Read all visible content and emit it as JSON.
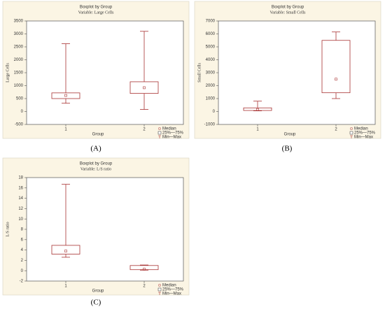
{
  "chart_data": [
    {
      "type": "box",
      "title": "Boxplot by Group",
      "subtitle": "Variable: Large Cells",
      "x_label": "Group",
      "y_label": "Large Cells",
      "panel_label": "(A)",
      "categories": [
        "1",
        "2"
      ],
      "min": [
        320,
        80
      ],
      "q1": [
        500,
        700
      ],
      "median": [
        620,
        920
      ],
      "q3": [
        720,
        1150
      ],
      "max": [
        2620,
        3100
      ],
      "color": "#a83232",
      "ylim": [
        -500,
        3500
      ],
      "yticks": [
        -500,
        0,
        500,
        1000,
        1500,
        2000,
        2500,
        3000,
        3500
      ],
      "grid": false,
      "legend": [
        "Median",
        "25%—75%",
        "Min—Max"
      ]
    },
    {
      "type": "box",
      "title": "Boxplot by Group",
      "subtitle": "Variable: Small Cells",
      "x_label": "Group",
      "y_label": "Small Cells",
      "panel_label": "(B)",
      "categories": [
        "1",
        "2"
      ],
      "min": [
        50,
        1000
      ],
      "q1": [
        80,
        1450
      ],
      "median": [
        150,
        2500
      ],
      "q3": [
        280,
        5500
      ],
      "max": [
        800,
        6150
      ],
      "color": "#a83232",
      "ylim": [
        -1000,
        7000
      ],
      "yticks": [
        -1000,
        0,
        1000,
        2000,
        3000,
        4000,
        5000,
        6000,
        7000
      ],
      "grid": false,
      "legend": [
        "Median",
        "25%—75%",
        "Min—Max"
      ]
    },
    {
      "type": "box",
      "title": "Boxplot by Group",
      "subtitle": "Variable: L/S ratio",
      "x_label": "Group",
      "y_label": "L/S ratio",
      "panel_label": "(C)",
      "categories": [
        "1",
        "2"
      ],
      "min": [
        2.6,
        0.1
      ],
      "q1": [
        3.2,
        0.2
      ],
      "median": [
        3.8,
        0.3
      ],
      "q3": [
        4.9,
        1.0
      ],
      "max": [
        16.7,
        1.1
      ],
      "color": "#a83232",
      "ylim": [
        -2,
        18
      ],
      "yticks": [
        -2,
        0,
        2,
        4,
        6,
        8,
        10,
        12,
        14,
        16,
        18
      ],
      "grid": false,
      "legend": [
        "Median",
        "25%—75%",
        "Min—Max"
      ]
    }
  ]
}
